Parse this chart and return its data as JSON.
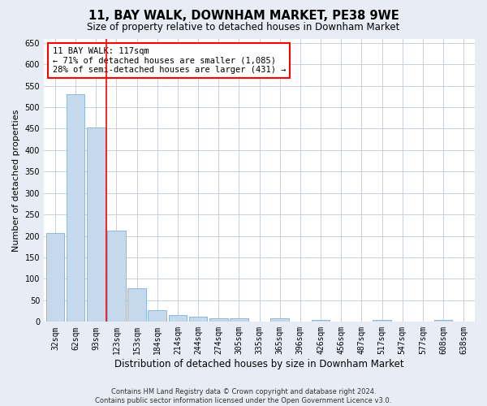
{
  "title": "11, BAY WALK, DOWNHAM MARKET, PE38 9WE",
  "subtitle": "Size of property relative to detached houses in Downham Market",
  "xlabel": "Distribution of detached houses by size in Downham Market",
  "ylabel": "Number of detached properties",
  "categories": [
    "32sqm",
    "62sqm",
    "93sqm",
    "123sqm",
    "153sqm",
    "184sqm",
    "214sqm",
    "244sqm",
    "274sqm",
    "305sqm",
    "335sqm",
    "365sqm",
    "396sqm",
    "426sqm",
    "456sqm",
    "487sqm",
    "517sqm",
    "547sqm",
    "577sqm",
    "608sqm",
    "638sqm"
  ],
  "values": [
    207,
    530,
    452,
    212,
    78,
    27,
    15,
    12,
    8,
    8,
    0,
    8,
    0,
    5,
    0,
    0,
    5,
    0,
    0,
    5,
    0
  ],
  "bar_color": "#c5d9ed",
  "bar_edge_color": "#7fafd4",
  "vline_color": "red",
  "annotation_text": "11 BAY WALK: 117sqm\n← 71% of detached houses are smaller (1,085)\n28% of semi-detached houses are larger (431) →",
  "annotation_box_color": "white",
  "annotation_box_edge": "red",
  "ylim": [
    0,
    660
  ],
  "yticks": [
    0,
    50,
    100,
    150,
    200,
    250,
    300,
    350,
    400,
    450,
    500,
    550,
    600,
    650
  ],
  "fig_background_color": "#e8edf5",
  "plot_background": "white",
  "grid_color": "#c8d0dc",
  "footer_line1": "Contains HM Land Registry data © Crown copyright and database right 2024.",
  "footer_line2": "Contains public sector information licensed under the Open Government Licence v3.0.",
  "title_fontsize": 10.5,
  "subtitle_fontsize": 8.5,
  "xlabel_fontsize": 8.5,
  "ylabel_fontsize": 8,
  "tick_fontsize": 7,
  "annotation_fontsize": 7.5,
  "footer_fontsize": 6
}
